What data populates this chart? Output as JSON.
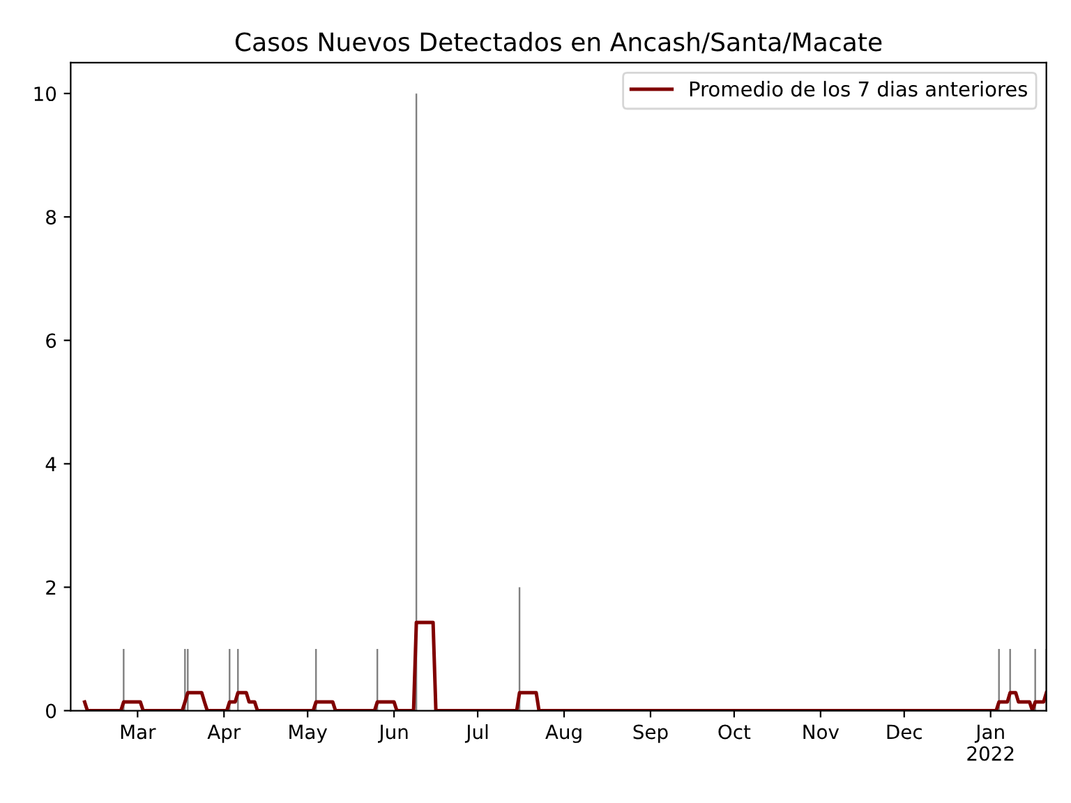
{
  "chart_data": {
    "type": "bar",
    "title": "Casos Nuevos Detectados en Ancash/Santa/Macate",
    "legend": "top right",
    "grid": false,
    "xlim": [
      "2021-02-05",
      "2022-01-21"
    ],
    "xticks": [
      {
        "value": "2021-03-01",
        "label": "Mar"
      },
      {
        "value": "2021-04-01",
        "label": "Apr"
      },
      {
        "value": "2021-05-01",
        "label": "May"
      },
      {
        "value": "2021-06-01",
        "label": "Jun"
      },
      {
        "value": "2021-07-01",
        "label": "Jul"
      },
      {
        "value": "2021-08-01",
        "label": "Aug"
      },
      {
        "value": "2021-09-01",
        "label": "Sep"
      },
      {
        "value": "2021-10-01",
        "label": "Oct"
      },
      {
        "value": "2021-11-01",
        "label": "Nov"
      },
      {
        "value": "2021-12-01",
        "label": "Dec"
      },
      {
        "value": "2022-01-01",
        "label": "Jan\n2022"
      }
    ],
    "ylim": [
      0,
      10.5
    ],
    "yticks": [
      0,
      2,
      4,
      6,
      8,
      10
    ],
    "series": [
      {
        "color": "#808080",
        "x": [
          "2021-02-24",
          "2021-03-18",
          "2021-03-19",
          "2021-04-03",
          "2021-04-06",
          "2021-05-04",
          "2021-05-26",
          "2021-06-09",
          "2021-07-16",
          "2022-01-04",
          "2022-01-08",
          "2022-01-17",
          "2022-01-21"
        ],
        "values": [
          1,
          1,
          1,
          1,
          1,
          1,
          1,
          10,
          2,
          1,
          1,
          1,
          1
        ]
      },
      {
        "type": "line",
        "name": "Promedio de los 7 dias anteriores",
        "color": "#800000",
        "line_style": "solid",
        "x": [
          "2021-02-10",
          "2021-02-11",
          "2021-02-23",
          "2021-02-24",
          "2021-03-02",
          "2021-03-03",
          "2021-03-17",
          "2021-03-18",
          "2021-03-19",
          "2021-03-24",
          "2021-03-25",
          "2021-03-26",
          "2021-04-02",
          "2021-04-03",
          "2021-04-05",
          "2021-04-06",
          "2021-04-09",
          "2021-04-10",
          "2021-04-12",
          "2021-04-13",
          "2021-05-03",
          "2021-05-04",
          "2021-05-10",
          "2021-05-11",
          "2021-05-25",
          "2021-05-26",
          "2021-06-01",
          "2021-06-02",
          "2021-06-08",
          "2021-06-09",
          "2021-06-15",
          "2021-06-16",
          "2021-07-15",
          "2021-07-16",
          "2021-07-22",
          "2021-07-23",
          "2022-01-03",
          "2022-01-04",
          "2022-01-07",
          "2022-01-08",
          "2022-01-10",
          "2022-01-11",
          "2022-01-15",
          "2022-01-16",
          "2022-01-17",
          "2022-01-20",
          "2022-01-21"
        ],
        "values": [
          0.14,
          0,
          0,
          0.14,
          0.14,
          0,
          0,
          0.14,
          0.29,
          0.29,
          0.14,
          0,
          0,
          0.14,
          0.14,
          0.29,
          0.29,
          0.14,
          0.14,
          0,
          0,
          0.14,
          0.14,
          0,
          0,
          0.14,
          0.14,
          0,
          0,
          1.43,
          1.43,
          0,
          0,
          0.29,
          0.29,
          0,
          0,
          0.14,
          0.14,
          0.29,
          0.29,
          0.14,
          0.14,
          0,
          0.14,
          0.14,
          0.29
        ]
      }
    ]
  }
}
